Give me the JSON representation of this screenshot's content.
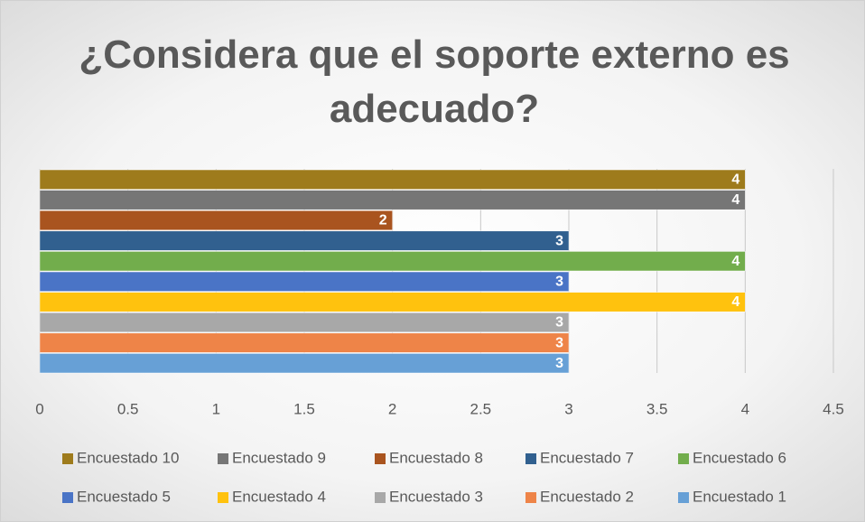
{
  "chart_data": {
    "type": "bar",
    "orientation": "horizontal",
    "title": "¿Considera que el soporte externo es adecuado?",
    "series": [
      {
        "name": "Encuestado 10",
        "color": "#9e7b1c",
        "values": [
          4
        ]
      },
      {
        "name": "Encuestado 9",
        "color": "#767676",
        "values": [
          4
        ]
      },
      {
        "name": "Encuestado 8",
        "color": "#a9541f",
        "values": [
          2
        ]
      },
      {
        "name": "Encuestado 7",
        "color": "#31608f",
        "values": [
          3
        ]
      },
      {
        "name": "Encuestado 6",
        "color": "#72ad4c",
        "values": [
          4
        ]
      },
      {
        "name": "Encuestado 5",
        "color": "#4a74c6",
        "values": [
          3
        ]
      },
      {
        "name": "Encuestado 4",
        "color": "#ffc20e",
        "values": [
          4
        ]
      },
      {
        "name": "Encuestado 3",
        "color": "#a8a8a8",
        "values": [
          3
        ]
      },
      {
        "name": "Encuestado 2",
        "color": "#ee8448",
        "values": [
          3
        ]
      },
      {
        "name": "Encuestado 1",
        "color": "#67a0d6",
        "values": [
          3
        ]
      }
    ],
    "xlim": [
      0,
      4.5
    ],
    "xticks": [
      0,
      0.5,
      1,
      1.5,
      2,
      2.5,
      3,
      3.5,
      4,
      4.5
    ],
    "grid": true,
    "legend": "bottom"
  }
}
